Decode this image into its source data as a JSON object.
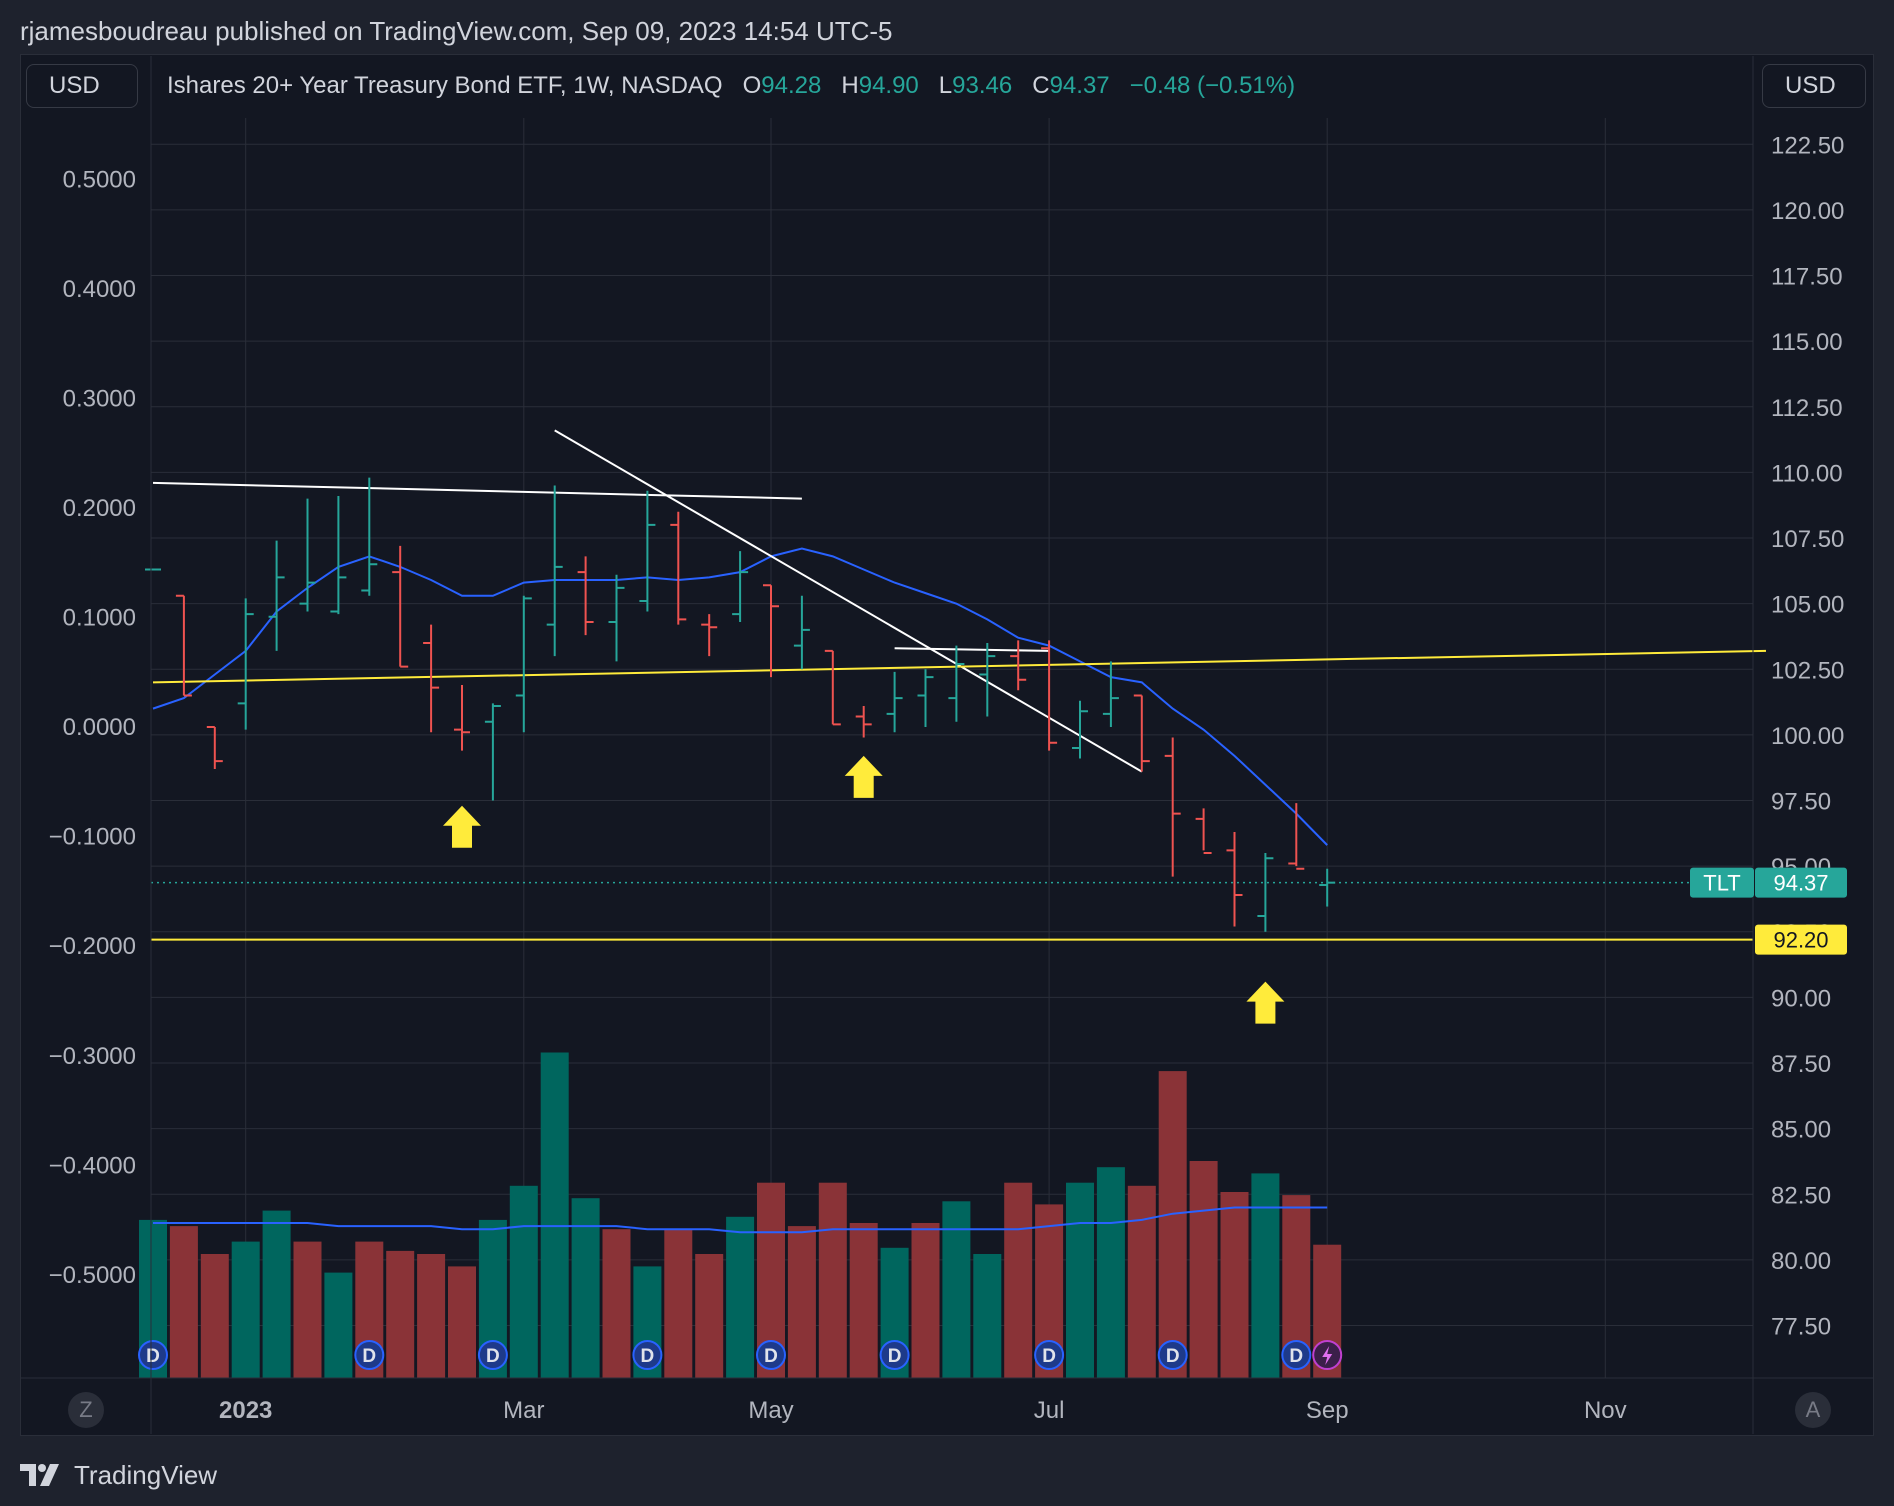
{
  "header": {
    "text": "rjamesboudreau published on TradingView.com, Sep 09, 2023 14:54 UTC-5"
  },
  "left_unit_button": "USD",
  "right_unit_button": "USD",
  "legend": {
    "title": "Ishares 20+ Year Treasury Bond ETF, 1W, NASDAQ",
    "o_label": "O",
    "o_value": "94.28",
    "h_label": "H",
    "h_value": "94.90",
    "l_label": "L",
    "l_value": "93.46",
    "c_label": "C",
    "c_value": "94.37",
    "change": "−0.48 (−0.51%)"
  },
  "corner_left": "Z",
  "corner_right": "A",
  "footer": {
    "brand": "TradingView"
  },
  "colors": {
    "background": "#131722",
    "up": "#26a69a",
    "down": "#ef5350",
    "up_volume": "#00665e",
    "down_volume": "#8a3337",
    "moving_average": "#2962ff",
    "support_line": "#ffeb3b",
    "trend_lines": "#ffffff"
  },
  "chart_data": {
    "type": "bar",
    "symbol_badge": "TLT",
    "last_price": "94.37",
    "level_label": "92.20",
    "support_level": 92.2,
    "right_axis": {
      "ylim": [
        75.5,
        123.5
      ],
      "ticks": [
        "122.50",
        "120.00",
        "117.50",
        "115.00",
        "112.50",
        "110.00",
        "107.50",
        "105.00",
        "102.50",
        "100.00",
        "97.50",
        "95.00",
        "92.50",
        "90.00",
        "87.50",
        "85.00",
        "82.50",
        "80.00",
        "77.50"
      ]
    },
    "left_axis": {
      "ylim": [
        -0.595,
        0.555
      ],
      "ticks": [
        "0.5000",
        "0.4000",
        "0.3000",
        "0.2000",
        "0.1000",
        "0.0000",
        "−0.1000",
        "−0.2000",
        "−0.3000",
        "−0.4000",
        "−0.5000"
      ]
    },
    "x_axis": {
      "labels": [
        {
          "text": "2023",
          "week": 3
        },
        {
          "text": "Mar",
          "week": 12
        },
        {
          "text": "May",
          "week": 20
        },
        {
          "text": "Jul",
          "week": 29
        },
        {
          "text": "Sep",
          "week": 38
        },
        {
          "text": "Nov",
          "week": 47
        }
      ]
    },
    "price_bars": [
      {
        "week": 0,
        "o": 106.3,
        "h": 106.3,
        "l": 106.3,
        "c": 106.3
      },
      {
        "week": 1,
        "o": 105.3,
        "h": 105.3,
        "l": 101.5,
        "c": 101.5
      },
      {
        "week": 2,
        "o": 100.3,
        "h": 100.3,
        "l": 98.7,
        "c": 99.0
      },
      {
        "week": 3,
        "o": 101.2,
        "h": 105.2,
        "l": 100.2,
        "c": 104.6
      },
      {
        "week": 4,
        "o": 104.5,
        "h": 107.4,
        "l": 103.2,
        "c": 106.0
      },
      {
        "week": 5,
        "o": 105.0,
        "h": 109.0,
        "l": 104.7,
        "c": 105.8
      },
      {
        "week": 6,
        "o": 104.7,
        "h": 109.1,
        "l": 104.6,
        "c": 106.0
      },
      {
        "week": 7,
        "o": 105.5,
        "h": 109.8,
        "l": 105.3,
        "c": 106.5
      },
      {
        "week": 8,
        "o": 106.2,
        "h": 107.2,
        "l": 102.6,
        "c": 102.6
      },
      {
        "week": 9,
        "o": 103.5,
        "h": 104.2,
        "l": 100.1,
        "c": 101.8
      },
      {
        "week": 10,
        "o": 100.2,
        "h": 101.9,
        "l": 99.4,
        "c": 100.1
      },
      {
        "week": 11,
        "o": 100.5,
        "h": 101.2,
        "l": 97.5,
        "c": 101.1
      },
      {
        "week": 12,
        "o": 101.5,
        "h": 105.3,
        "l": 100.1,
        "c": 105.2
      },
      {
        "week": 13,
        "o": 104.2,
        "h": 109.5,
        "l": 103.0,
        "c": 106.4
      },
      {
        "week": 14,
        "o": 106.2,
        "h": 106.8,
        "l": 103.8,
        "c": 104.3
      },
      {
        "week": 15,
        "o": 104.3,
        "h": 106.1,
        "l": 102.8,
        "c": 105.6
      },
      {
        "week": 16,
        "o": 105.1,
        "h": 109.3,
        "l": 104.7,
        "c": 108.0
      },
      {
        "week": 17,
        "o": 108.0,
        "h": 108.5,
        "l": 104.2,
        "c": 104.4
      },
      {
        "week": 18,
        "o": 104.2,
        "h": 104.6,
        "l": 103.0,
        "c": 104.1
      },
      {
        "week": 19,
        "o": 104.6,
        "h": 107.0,
        "l": 104.3,
        "c": 106.2
      },
      {
        "week": 20,
        "o": 105.7,
        "h": 105.7,
        "l": 102.2,
        "c": 104.9
      },
      {
        "week": 21,
        "o": 103.4,
        "h": 105.3,
        "l": 102.5,
        "c": 104.0
      },
      {
        "week": 22,
        "o": 103.2,
        "h": 103.2,
        "l": 100.4,
        "c": 100.4
      },
      {
        "week": 23,
        "o": 100.7,
        "h": 101.1,
        "l": 99.9,
        "c": 100.4
      },
      {
        "week": 24,
        "o": 100.8,
        "h": 102.4,
        "l": 100.1,
        "c": 101.4
      },
      {
        "week": 25,
        "o": 101.5,
        "h": 102.5,
        "l": 100.3,
        "c": 102.2
      },
      {
        "week": 26,
        "o": 101.4,
        "h": 103.4,
        "l": 100.5,
        "c": 102.7
      },
      {
        "week": 27,
        "o": 102.3,
        "h": 103.5,
        "l": 100.7,
        "c": 103.0
      },
      {
        "week": 28,
        "o": 103.0,
        "h": 103.6,
        "l": 101.7,
        "c": 102.1
      },
      {
        "week": 29,
        "o": 103.3,
        "h": 103.6,
        "l": 99.4,
        "c": 99.7
      },
      {
        "week": 30,
        "o": 99.5,
        "h": 101.3,
        "l": 99.1,
        "c": 100.9
      },
      {
        "week": 31,
        "o": 100.8,
        "h": 102.8,
        "l": 100.3,
        "c": 101.4
      },
      {
        "week": 32,
        "o": 101.5,
        "h": 101.5,
        "l": 98.6,
        "c": 99.0
      },
      {
        "week": 33,
        "o": 99.2,
        "h": 99.9,
        "l": 94.6,
        "c": 97.0
      },
      {
        "week": 34,
        "o": 96.8,
        "h": 97.2,
        "l": 95.6,
        "c": 95.5
      },
      {
        "week": 35,
        "o": 95.6,
        "h": 96.3,
        "l": 92.7,
        "c": 93.9
      },
      {
        "week": 36,
        "o": 93.1,
        "h": 95.5,
        "l": 92.5,
        "c": 95.3
      },
      {
        "week": 37,
        "o": 95.1,
        "h": 97.4,
        "l": 95.0,
        "c": 94.9
      },
      {
        "week": 38,
        "o": 94.28,
        "h": 94.9,
        "l": 93.46,
        "c": 94.37
      }
    ],
    "moving_average": [
      101.0,
      101.4,
      102.3,
      103.2,
      104.7,
      105.6,
      106.4,
      106.8,
      106.4,
      105.9,
      105.3,
      105.3,
      105.8,
      105.9,
      105.9,
      105.9,
      106.0,
      105.9,
      106.0,
      106.2,
      106.8,
      107.1,
      106.8,
      106.3,
      105.8,
      105.4,
      105.0,
      104.4,
      103.7,
      103.4,
      102.8,
      102.2,
      102.0,
      101.0,
      100.2,
      99.2,
      98.1,
      97.0,
      95.8
    ],
    "volume": [
      {
        "week": 0,
        "v": 0.51,
        "up": true
      },
      {
        "week": 1,
        "v": 0.49,
        "up": false
      },
      {
        "week": 2,
        "v": 0.4,
        "up": false
      },
      {
        "week": 3,
        "v": 0.44,
        "up": true
      },
      {
        "week": 4,
        "v": 0.54,
        "up": true
      },
      {
        "week": 5,
        "v": 0.44,
        "up": false
      },
      {
        "week": 6,
        "v": 0.34,
        "up": true
      },
      {
        "week": 7,
        "v": 0.44,
        "up": false
      },
      {
        "week": 8,
        "v": 0.41,
        "up": false
      },
      {
        "week": 9,
        "v": 0.4,
        "up": false
      },
      {
        "week": 10,
        "v": 0.36,
        "up": false
      },
      {
        "week": 11,
        "v": 0.51,
        "up": true
      },
      {
        "week": 12,
        "v": 0.62,
        "up": true
      },
      {
        "week": 13,
        "v": 1.05,
        "up": true
      },
      {
        "week": 14,
        "v": 0.58,
        "up": true
      },
      {
        "week": 15,
        "v": 0.48,
        "up": false
      },
      {
        "week": 16,
        "v": 0.36,
        "up": true
      },
      {
        "week": 17,
        "v": 0.48,
        "up": false
      },
      {
        "week": 18,
        "v": 0.4,
        "up": false
      },
      {
        "week": 19,
        "v": 0.52,
        "up": true
      },
      {
        "week": 20,
        "v": 0.63,
        "up": false
      },
      {
        "week": 21,
        "v": 0.49,
        "up": false
      },
      {
        "week": 22,
        "v": 0.63,
        "up": false
      },
      {
        "week": 23,
        "v": 0.5,
        "up": false
      },
      {
        "week": 24,
        "v": 0.42,
        "up": true
      },
      {
        "week": 25,
        "v": 0.5,
        "up": false
      },
      {
        "week": 26,
        "v": 0.57,
        "up": true
      },
      {
        "week": 27,
        "v": 0.4,
        "up": true
      },
      {
        "week": 28,
        "v": 0.63,
        "up": false
      },
      {
        "week": 29,
        "v": 0.56,
        "up": false
      },
      {
        "week": 30,
        "v": 0.63,
        "up": true
      },
      {
        "week": 31,
        "v": 0.68,
        "up": true
      },
      {
        "week": 32,
        "v": 0.62,
        "up": false
      },
      {
        "week": 33,
        "v": 0.99,
        "up": false
      },
      {
        "week": 34,
        "v": 0.7,
        "up": false
      },
      {
        "week": 35,
        "v": 0.6,
        "up": false
      },
      {
        "week": 36,
        "v": 0.66,
        "up": true
      },
      {
        "week": 37,
        "v": 0.59,
        "up": false
      },
      {
        "week": 38,
        "v": 0.43,
        "up": false
      }
    ],
    "volume_ma": [
      0.5,
      0.5,
      0.5,
      0.5,
      0.5,
      0.5,
      0.49,
      0.49,
      0.49,
      0.49,
      0.48,
      0.48,
      0.49,
      0.49,
      0.49,
      0.49,
      0.48,
      0.48,
      0.48,
      0.47,
      0.47,
      0.47,
      0.48,
      0.48,
      0.48,
      0.48,
      0.48,
      0.48,
      0.48,
      0.49,
      0.5,
      0.5,
      0.51,
      0.53,
      0.54,
      0.55,
      0.55,
      0.55,
      0.55
    ],
    "dividend_markers": [
      0,
      7,
      11,
      16,
      20,
      24,
      29,
      33,
      37
    ],
    "split_marker_week": 38,
    "trend_lines": [
      {
        "color": "white",
        "from": {
          "week": 0,
          "price": 109.6
        },
        "to": {
          "week": 21,
          "price": 109.0
        }
      },
      {
        "color": "white",
        "from": {
          "week": 13,
          "price": 111.6
        },
        "to": {
          "week": 32,
          "price": 98.6
        }
      },
      {
        "color": "white",
        "from": {
          "week": 24,
          "price": 103.3
        },
        "to": {
          "week": 29,
          "price": 103.2
        }
      },
      {
        "color": "yellow",
        "from": {
          "week": 0,
          "price": 102.0
        },
        "to": {
          "week": 52.2,
          "price": 103.2
        }
      }
    ],
    "arrows": [
      {
        "week": 10,
        "price": 97.3
      },
      {
        "week": 23,
        "price": 99.2
      },
      {
        "week": 36,
        "price": 90.6
      }
    ]
  }
}
